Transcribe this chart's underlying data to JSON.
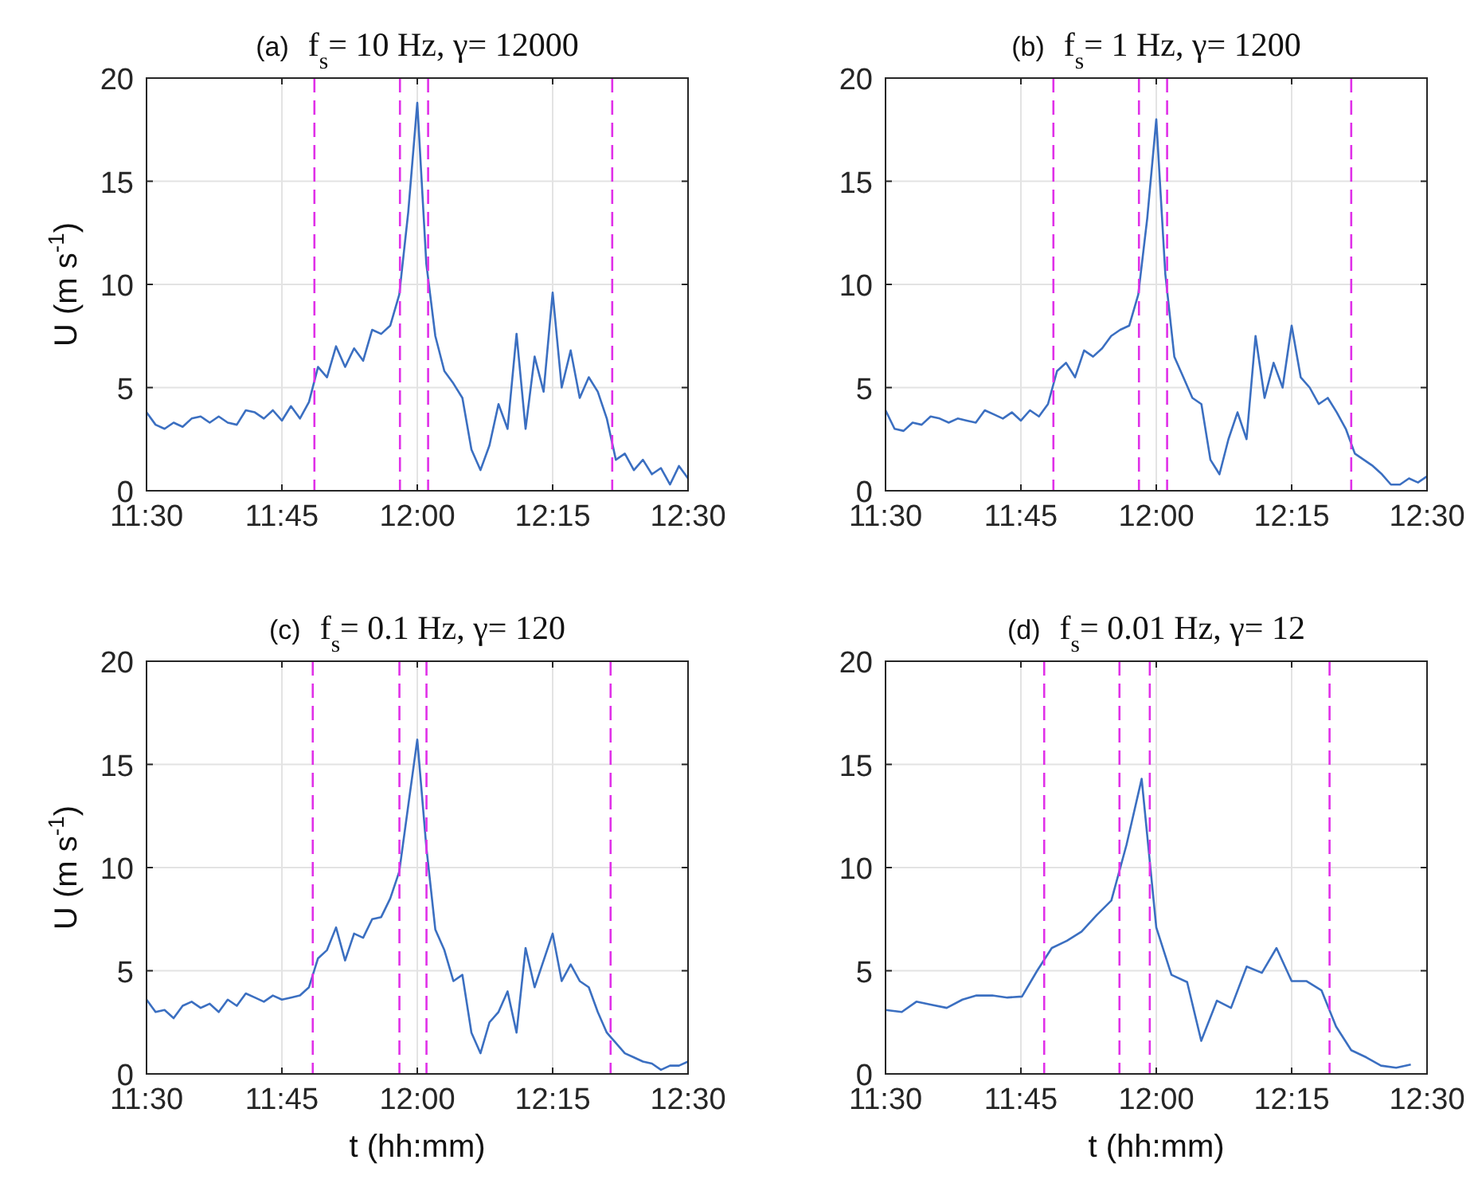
{
  "chart_data": [
    {
      "type": "line",
      "title": "(a) f$_{s}$= 10 Hz,  γ= 12000",
      "ylabel": "U (m s$^{-1}$)",
      "xlim": [
        11.5,
        12.5
      ],
      "xticks": [
        {
          "value": 11.5,
          "label": "11:30"
        },
        {
          "value": 11.75,
          "label": "11:45"
        },
        {
          "value": 12,
          "label": "12:00"
        },
        {
          "value": 12.25,
          "label": "12:15"
        },
        {
          "value": 12.5,
          "label": "12:30"
        }
      ],
      "ylim": [
        0,
        20
      ],
      "yticks": [
        0,
        5,
        10,
        15,
        20
      ],
      "grid": true,
      "x": [
        11.5,
        11.5167,
        11.5333,
        11.55,
        11.5667,
        11.5833,
        11.6,
        11.6167,
        11.6333,
        11.65,
        11.6667,
        11.6833,
        11.7,
        11.7167,
        11.7333,
        11.75,
        11.7667,
        11.7833,
        11.8,
        11.8167,
        11.8333,
        11.85,
        11.8667,
        11.8833,
        11.9,
        11.9167,
        11.9333,
        11.95,
        11.9667,
        11.9833,
        12,
        12.0167,
        12.0333,
        12.05,
        12.0667,
        12.0833,
        12.1,
        12.1167,
        12.1333,
        12.15,
        12.1667,
        12.1833,
        12.2,
        12.2167,
        12.2333,
        12.25,
        12.2667,
        12.2833,
        12.3,
        12.3167,
        12.3333,
        12.35,
        12.3667,
        12.3833,
        12.4,
        12.4167,
        12.4333,
        12.45,
        12.4667,
        12.4833,
        12.5
      ],
      "series": [
        {
          "color": "#3b6fc1",
          "values": [
            3.8,
            3.2,
            3.0,
            3.3,
            3.1,
            3.5,
            3.6,
            3.3,
            3.6,
            3.3,
            3.2,
            3.9,
            3.8,
            3.5,
            3.9,
            3.4,
            4.1,
            3.5,
            4.3,
            6.0,
            5.5,
            7.0,
            6.0,
            6.9,
            6.3,
            7.8,
            7.6,
            8.0,
            9.5,
            13.5,
            18.8,
            11.0,
            7.5,
            5.8,
            5.2,
            4.5,
            2.0,
            1.0,
            2.2,
            4.2,
            3.0,
            7.6,
            3.0,
            6.5,
            4.8,
            9.6,
            5.0,
            6.8,
            4.5,
            5.5,
            4.8,
            3.5,
            1.5,
            1.8,
            1.0,
            1.5,
            0.8,
            1.1,
            0.3,
            1.2,
            0.6
          ]
        }
      ],
      "ref_lines": [
        {
          "axis": "x",
          "value": 11.81,
          "color": "#e030e8",
          "line_style": "dashed"
        },
        {
          "axis": "x",
          "value": 11.968,
          "color": "#e030e8",
          "line_style": "dashed"
        },
        {
          "axis": "x",
          "value": 12.02,
          "color": "#e030e8",
          "line_style": "dashed"
        },
        {
          "axis": "x",
          "value": 12.36,
          "color": "#e030e8",
          "line_style": "dashed"
        }
      ]
    },
    {
      "type": "line",
      "title": "(b) f$_{s}$= 1 Hz,  γ= 1200",
      "xlim": [
        11.5,
        12.5
      ],
      "xticks": [
        {
          "value": 11.5,
          "label": "11:30"
        },
        {
          "value": 11.75,
          "label": "11:45"
        },
        {
          "value": 12,
          "label": "12:00"
        },
        {
          "value": 12.25,
          "label": "12:15"
        },
        {
          "value": 12.5,
          "label": "12:30"
        }
      ],
      "ylim": [
        0,
        20
      ],
      "yticks": [
        0,
        5,
        10,
        15,
        20
      ],
      "grid": true,
      "x": [
        11.5,
        11.5167,
        11.5333,
        11.55,
        11.5667,
        11.5833,
        11.6,
        11.6167,
        11.6333,
        11.65,
        11.6667,
        11.6833,
        11.7,
        11.7167,
        11.7333,
        11.75,
        11.7667,
        11.7833,
        11.8,
        11.8167,
        11.8333,
        11.85,
        11.8667,
        11.8833,
        11.9,
        11.9167,
        11.9333,
        11.95,
        11.9667,
        11.9833,
        12,
        12.0167,
        12.0333,
        12.05,
        12.0667,
        12.0833,
        12.1,
        12.1167,
        12.1333,
        12.15,
        12.1667,
        12.1833,
        12.2,
        12.2167,
        12.2333,
        12.25,
        12.2667,
        12.2833,
        12.3,
        12.3167,
        12.3333,
        12.35,
        12.3667,
        12.3833,
        12.4,
        12.4167,
        12.4333,
        12.45,
        12.4667,
        12.4833,
        12.5
      ],
      "series": [
        {
          "color": "#3b6fc1",
          "values": [
            3.9,
            3.0,
            2.9,
            3.3,
            3.2,
            3.6,
            3.5,
            3.3,
            3.5,
            3.4,
            3.3,
            3.9,
            3.7,
            3.5,
            3.8,
            3.4,
            3.9,
            3.6,
            4.2,
            5.8,
            6.2,
            5.5,
            6.8,
            6.5,
            6.9,
            7.5,
            7.8,
            8.0,
            9.5,
            13.2,
            18.0,
            10.5,
            6.5,
            5.5,
            4.5,
            4.2,
            1.5,
            0.8,
            2.5,
            3.8,
            2.5,
            7.5,
            4.5,
            6.2,
            5.0,
            8.0,
            5.5,
            5.0,
            4.2,
            4.5,
            3.8,
            3.0,
            1.8,
            1.5,
            1.2,
            0.8,
            0.3,
            0.3,
            0.6,
            0.4,
            0.7
          ]
        }
      ],
      "ref_lines": [
        {
          "axis": "x",
          "value": 11.81,
          "color": "#e030e8",
          "line_style": "dashed"
        },
        {
          "axis": "x",
          "value": 11.968,
          "color": "#e030e8",
          "line_style": "dashed"
        },
        {
          "axis": "x",
          "value": 12.02,
          "color": "#e030e8",
          "line_style": "dashed"
        },
        {
          "axis": "x",
          "value": 12.36,
          "color": "#e030e8",
          "line_style": "dashed"
        }
      ]
    },
    {
      "type": "line",
      "title": "(c) f$_{s}$= 0.1 Hz,  γ= 120",
      "xlabel": "t (hh:mm)",
      "ylabel": "U (m s$^{-1}$)",
      "xlim": [
        11.5,
        12.5
      ],
      "xticks": [
        {
          "value": 11.5,
          "label": "11:30"
        },
        {
          "value": 11.75,
          "label": "11:45"
        },
        {
          "value": 12,
          "label": "12:00"
        },
        {
          "value": 12.25,
          "label": "12:15"
        },
        {
          "value": 12.5,
          "label": "12:30"
        }
      ],
      "ylim": [
        0,
        20
      ],
      "yticks": [
        0,
        5,
        10,
        15,
        20
      ],
      "grid": true,
      "x": [
        11.5,
        11.5167,
        11.5333,
        11.55,
        11.5667,
        11.5833,
        11.6,
        11.6167,
        11.6333,
        11.65,
        11.6667,
        11.6833,
        11.7,
        11.7167,
        11.7333,
        11.75,
        11.7667,
        11.7833,
        11.8,
        11.8167,
        11.8333,
        11.85,
        11.8667,
        11.8833,
        11.9,
        11.9167,
        11.9333,
        11.95,
        11.9667,
        11.9833,
        12,
        12.0167,
        12.0333,
        12.05,
        12.0667,
        12.0833,
        12.1,
        12.1167,
        12.1333,
        12.15,
        12.1667,
        12.1833,
        12.2,
        12.2167,
        12.2333,
        12.25,
        12.2667,
        12.2833,
        12.3,
        12.3167,
        12.3333,
        12.35,
        12.3667,
        12.3833,
        12.4,
        12.4167,
        12.4333,
        12.45,
        12.4667,
        12.4833,
        12.5
      ],
      "series": [
        {
          "color": "#3b6fc1",
          "values": [
            3.6,
            3.0,
            3.1,
            2.7,
            3.3,
            3.5,
            3.2,
            3.4,
            3.0,
            3.6,
            3.3,
            3.9,
            3.7,
            3.5,
            3.8,
            3.6,
            3.7,
            3.8,
            4.2,
            5.6,
            6.0,
            7.1,
            5.5,
            6.8,
            6.6,
            7.5,
            7.6,
            8.5,
            9.8,
            13.0,
            16.2,
            11.0,
            7.0,
            6.0,
            4.5,
            4.8,
            2.0,
            1.0,
            2.5,
            3.0,
            4.0,
            2.0,
            6.1,
            4.2,
            5.5,
            6.8,
            4.5,
            5.3,
            4.5,
            4.2,
            3.0,
            2.0,
            1.5,
            1.0,
            0.8,
            0.6,
            0.5,
            0.2,
            0.4,
            0.4,
            0.6
          ]
        }
      ],
      "ref_lines": [
        {
          "axis": "x",
          "value": 11.807,
          "color": "#e030e8",
          "line_style": "dashed"
        },
        {
          "axis": "x",
          "value": 11.967,
          "color": "#e030e8",
          "line_style": "dashed"
        },
        {
          "axis": "x",
          "value": 12.017,
          "color": "#e030e8",
          "line_style": "dashed"
        },
        {
          "axis": "x",
          "value": 12.357,
          "color": "#e030e8",
          "line_style": "dashed"
        }
      ]
    },
    {
      "type": "line",
      "title": "(d) f$_{s}$= 0.01 Hz,  γ= 12",
      "xlabel": "t (hh:mm)",
      "xlim": [
        11.5,
        12.5
      ],
      "xticks": [
        {
          "value": 11.5,
          "label": "11:30"
        },
        {
          "value": 11.75,
          "label": "11:45"
        },
        {
          "value": 12,
          "label": "12:00"
        },
        {
          "value": 12.25,
          "label": "12:15"
        },
        {
          "value": 12.5,
          "label": "12:30"
        }
      ],
      "ylim": [
        0,
        20
      ],
      "yticks": [
        0,
        5,
        10,
        15,
        20
      ],
      "grid": true,
      "x": [
        11.5,
        11.53,
        11.557,
        11.585,
        11.613,
        11.642,
        11.668,
        11.697,
        11.725,
        11.752,
        11.78,
        11.807,
        11.835,
        11.862,
        11.89,
        11.917,
        11.945,
        11.973,
        12.0,
        12.028,
        12.057,
        12.083,
        12.112,
        12.138,
        12.167,
        12.195,
        12.222,
        12.25,
        12.277,
        12.305,
        12.332,
        12.36,
        12.388,
        12.415,
        12.443,
        12.47
      ],
      "series": [
        {
          "color": "#3b6fc1",
          "values": [
            3.1,
            3.0,
            3.5,
            3.35,
            3.2,
            3.6,
            3.8,
            3.8,
            3.7,
            3.75,
            5.0,
            6.1,
            6.45,
            6.9,
            7.7,
            8.4,
            11.1,
            14.3,
            7.1,
            4.8,
            4.45,
            1.6,
            3.55,
            3.2,
            5.2,
            4.9,
            6.1,
            4.5,
            4.5,
            4.05,
            2.3,
            1.15,
            0.8,
            0.4,
            0.3,
            0.45
          ]
        }
      ],
      "ref_lines": [
        {
          "axis": "x",
          "value": 11.793,
          "color": "#e030e8",
          "line_style": "dashed"
        },
        {
          "axis": "x",
          "value": 11.932,
          "color": "#e030e8",
          "line_style": "dashed"
        },
        {
          "axis": "x",
          "value": 11.988,
          "color": "#e030e8",
          "line_style": "dashed"
        },
        {
          "axis": "x",
          "value": 12.32,
          "color": "#e030e8",
          "line_style": "dashed"
        }
      ]
    }
  ]
}
